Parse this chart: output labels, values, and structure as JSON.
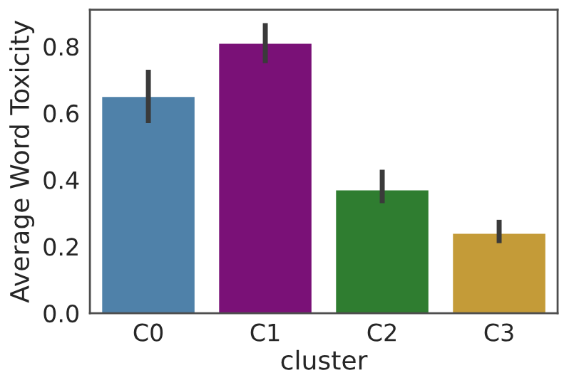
{
  "chart_data": {
    "type": "bar",
    "xlabel": "cluster",
    "ylabel": "Average Word Toxicity",
    "categories": [
      "C0",
      "C1",
      "C2",
      "C3"
    ],
    "values": [
      0.65,
      0.81,
      0.37,
      0.24
    ],
    "colors": [
      "#4f81a9",
      "#7a1177",
      "#2f7d30",
      "#c49b38"
    ],
    "errors": [
      [
        0.57,
        0.73
      ],
      [
        0.75,
        0.87
      ],
      [
        0.33,
        0.43
      ],
      [
        0.21,
        0.28
      ]
    ],
    "ylim": [
      0,
      0.91
    ],
    "yticks": [
      {
        "value": 0,
        "label": "0.0"
      },
      0.2,
      0.4,
      0.6,
      0.8
    ],
    "grid": false
  }
}
